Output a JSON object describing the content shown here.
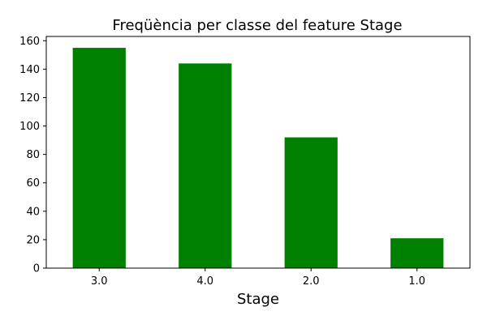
{
  "chart_data": {
    "type": "bar",
    "title": "Freqüència per classe del feature Stage",
    "xlabel": "Stage",
    "ylabel": "",
    "categories": [
      "3.0",
      "4.0",
      "2.0",
      "1.0"
    ],
    "values": [
      155,
      144,
      92,
      21
    ],
    "ylim": [
      0,
      163
    ],
    "yticks": [
      0,
      20,
      40,
      60,
      80,
      100,
      120,
      140,
      160
    ],
    "bar_color": "#008000",
    "grid": false,
    "legend": "none"
  }
}
